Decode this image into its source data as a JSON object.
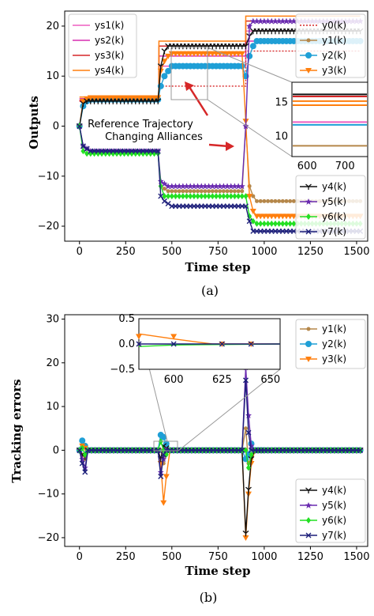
{
  "figure": {
    "panels": [
      {
        "id": "a",
        "caption": "(a)",
        "xlabel": "Time step",
        "ylabel": "Outputs",
        "xticks": [
          0,
          250,
          500,
          750,
          1000,
          1250,
          1500
        ],
        "yticks": [
          20,
          10,
          0,
          -10,
          -20
        ],
        "annotations": [
          "Reference Trajectory",
          "Changing Alliances"
        ],
        "inset": {
          "xticks": [
            600,
            700
          ],
          "yticks": [
            15,
            10
          ]
        }
      },
      {
        "id": "b",
        "caption": "(b)",
        "xlabel": "Time step",
        "ylabel": "Tracking errors",
        "xticks": [
          0,
          250,
          500,
          750,
          1000,
          1250,
          1500
        ],
        "yticks": [
          30,
          20,
          10,
          0,
          -10,
          -20
        ],
        "inset": {
          "xticks": [
            600,
            625,
            650
          ],
          "yticks": [
            0.5,
            0.0,
            -0.5
          ]
        }
      }
    ]
  },
  "chart_data": [
    {
      "type": "line",
      "panel": "a",
      "xlabel": "Time step",
      "ylabel": "Outputs",
      "xlim": [
        -80,
        1560
      ],
      "ylim": [
        -23,
        23
      ],
      "grid": false,
      "legend_placement": [
        "upper-left",
        "upper-right",
        "lower-right"
      ],
      "series": [
        {
          "name": "ys1(k)",
          "color": "#ee5ec1",
          "style": "ref",
          "x": [
            0,
            430,
            430,
            900,
            900,
            1520
          ],
          "y": [
            5,
            5,
            12,
            12,
            19,
            19
          ]
        },
        {
          "name": "ys2(k)",
          "color": "#d72fb0",
          "style": "ref",
          "x": [
            0,
            430,
            430,
            900,
            900,
            1520
          ],
          "y": [
            5.5,
            5.5,
            14,
            14,
            17,
            17
          ]
        },
        {
          "name": "ys3(k)",
          "color": "#d62728",
          "style": "ref",
          "x": [
            0,
            430,
            430,
            900,
            900,
            1520
          ],
          "y": [
            5.2,
            5.2,
            16,
            16,
            21,
            21
          ]
        },
        {
          "name": "ys4(k)",
          "color": "#ff7f0e",
          "style": "ref",
          "x": [
            0,
            430,
            430,
            900,
            900,
            1520
          ],
          "y": [
            5.8,
            5.8,
            17,
            17,
            22,
            22
          ]
        },
        {
          "name": "y0(k)",
          "color": "#d62728",
          "style": "dotted",
          "x": [
            0,
            430,
            430,
            900,
            900,
            1520
          ],
          "y": [
            5,
            5,
            8,
            8,
            15,
            15
          ]
        },
        {
          "name": "y1(k)",
          "color": "#b5874a",
          "marker": "circle",
          "x": [
            0,
            20,
            40,
            60,
            425,
            440,
            460,
            480,
            500,
            880,
            900,
            920,
            940,
            960,
            1000,
            1520
          ],
          "y": [
            0,
            -4,
            -4.5,
            -5,
            -5,
            -12,
            -12.5,
            -13,
            -13,
            -13,
            0,
            -12,
            -14,
            -15,
            -15,
            -15
          ]
        },
        {
          "name": "y2(k)",
          "color": "#1f9fd6",
          "marker": "circle-big",
          "x": [
            0,
            20,
            40,
            60,
            425,
            440,
            460,
            480,
            500,
            880,
            900,
            920,
            940,
            960,
            1000,
            1520
          ],
          "y": [
            0,
            4,
            5,
            5.3,
            5.3,
            8,
            10,
            11,
            12,
            12,
            10,
            14,
            16,
            17,
            17,
            17
          ]
        },
        {
          "name": "y3(k)",
          "color": "#ff7f0e",
          "marker": "triangle-down",
          "x": [
            0,
            20,
            40,
            60,
            425,
            440,
            460,
            480,
            500,
            880,
            900,
            920,
            940,
            960,
            1000,
            1520
          ],
          "y": [
            0,
            5,
            5.5,
            5.7,
            5.7,
            11,
            13,
            14,
            14.5,
            14.5,
            1,
            -14,
            -17,
            -18,
            -18,
            -18
          ]
        },
        {
          "name": "y4(k)",
          "color": "#111111",
          "marker": "tri-down",
          "x": [
            0,
            20,
            40,
            60,
            425,
            440,
            460,
            480,
            500,
            880,
            900,
            920,
            940,
            960,
            1000,
            1520
          ],
          "y": [
            0,
            4.5,
            5,
            5,
            5,
            12,
            15,
            16,
            16,
            16,
            16,
            18,
            19,
            19,
            19,
            19
          ]
        },
        {
          "name": "y5(k)",
          "color": "#6a2bb0",
          "marker": "star",
          "x": [
            0,
            20,
            40,
            60,
            425,
            440,
            460,
            480,
            500,
            880,
            900,
            920,
            940,
            960,
            1000,
            1520
          ],
          "y": [
            0,
            -4,
            -4.5,
            -5,
            -5,
            -11,
            -11.5,
            -12,
            -12,
            -12,
            0,
            20,
            21,
            21,
            21,
            21
          ]
        },
        {
          "name": "y6(k)",
          "color": "#22e022",
          "marker": "diamond",
          "x": [
            0,
            20,
            40,
            60,
            425,
            440,
            460,
            480,
            500,
            880,
            900,
            920,
            940,
            960,
            1000,
            1520
          ],
          "y": [
            0,
            -5,
            -5.5,
            -5.5,
            -5.5,
            -12,
            -14,
            -14,
            -14,
            -14,
            -14,
            -18,
            -19,
            -19.5,
            -19.5,
            -19.5
          ]
        },
        {
          "name": "y7(k)",
          "color": "#1d1f7a",
          "marker": "x",
          "x": [
            0,
            20,
            40,
            60,
            425,
            440,
            460,
            480,
            500,
            880,
            900,
            920,
            940,
            960,
            1000,
            1520
          ],
          "y": [
            0,
            -4,
            -4.5,
            -5,
            -5,
            -14,
            -15,
            -15.5,
            -16,
            -16,
            -16,
            -19,
            -21,
            -21,
            -21,
            -21
          ]
        }
      ]
    },
    {
      "type": "line",
      "panel": "b",
      "xlabel": "Time step",
      "ylabel": "Tracking errors",
      "xlim": [
        -80,
        1560
      ],
      "ylim": [
        -22,
        31
      ],
      "grid": false,
      "legend_placement": [
        "upper-right",
        "lower-right"
      ],
      "series": [
        {
          "name": "y1(k)",
          "color": "#b5874a",
          "marker": "circle",
          "x": [
            0,
            15,
            30,
            45,
            425,
            440,
            455,
            470,
            490,
            880,
            900,
            915,
            930,
            950,
            1000,
            1520
          ],
          "y": [
            0,
            -1,
            -2,
            0,
            0,
            0,
            -3,
            -1,
            0,
            0,
            5,
            -3,
            -2,
            0,
            0,
            0
          ]
        },
        {
          "name": "y2(k)",
          "color": "#1f9fd6",
          "marker": "circle-big",
          "x": [
            0,
            15,
            30,
            45,
            425,
            440,
            455,
            470,
            490,
            880,
            900,
            915,
            930,
            950,
            1000,
            1520
          ],
          "y": [
            0,
            2.2,
            1,
            0,
            0,
            3.5,
            3,
            1.5,
            0,
            0,
            -2,
            -1,
            1.5,
            0,
            0,
            0
          ]
        },
        {
          "name": "y3(k)",
          "color": "#ff7f0e",
          "marker": "triangle-down",
          "x": [
            0,
            15,
            30,
            45,
            425,
            440,
            455,
            470,
            490,
            880,
            900,
            915,
            930,
            950,
            1000,
            1520
          ],
          "y": [
            0,
            1,
            0.5,
            0,
            0,
            -3,
            -12,
            -6,
            0,
            0,
            -20,
            -10,
            -3,
            0,
            0,
            0
          ]
        },
        {
          "name": "y4(k)",
          "color": "#111111",
          "marker": "tri-down",
          "x": [
            0,
            15,
            30,
            45,
            425,
            440,
            455,
            470,
            490,
            880,
            900,
            915,
            930,
            950,
            1000,
            1520
          ],
          "y": [
            0,
            -1,
            -1.5,
            0,
            0,
            -2,
            1,
            0.5,
            0,
            0,
            -19,
            -9,
            -2,
            0,
            0,
            0
          ]
        },
        {
          "name": "y5(k)",
          "color": "#6a2bb0",
          "marker": "star",
          "x": [
            0,
            15,
            30,
            45,
            425,
            440,
            455,
            470,
            490,
            880,
            900,
            915,
            930,
            950,
            1000,
            1520
          ],
          "y": [
            0,
            -2,
            -4,
            0,
            0,
            -5,
            -2,
            0,
            0,
            0,
            19,
            8,
            1,
            0,
            0,
            0
          ]
        },
        {
          "name": "y6(k)",
          "color": "#22e022",
          "marker": "diamond",
          "x": [
            0,
            15,
            30,
            45,
            425,
            440,
            455,
            470,
            490,
            880,
            900,
            915,
            930,
            950,
            1000,
            1520
          ],
          "y": [
            0,
            0.5,
            -1,
            0,
            0,
            2,
            0,
            -1,
            0,
            0,
            0,
            -4,
            -1,
            0,
            0,
            0
          ]
        },
        {
          "name": "y7(k)",
          "color": "#1d1f7a",
          "marker": "x",
          "x": [
            0,
            15,
            30,
            45,
            425,
            440,
            455,
            470,
            490,
            880,
            900,
            915,
            930,
            950,
            1000,
            1520
          ],
          "y": [
            0,
            -3,
            -5,
            0,
            0,
            -6,
            -1,
            0,
            0,
            0,
            16,
            4,
            0,
            0,
            0,
            0
          ]
        }
      ]
    }
  ]
}
